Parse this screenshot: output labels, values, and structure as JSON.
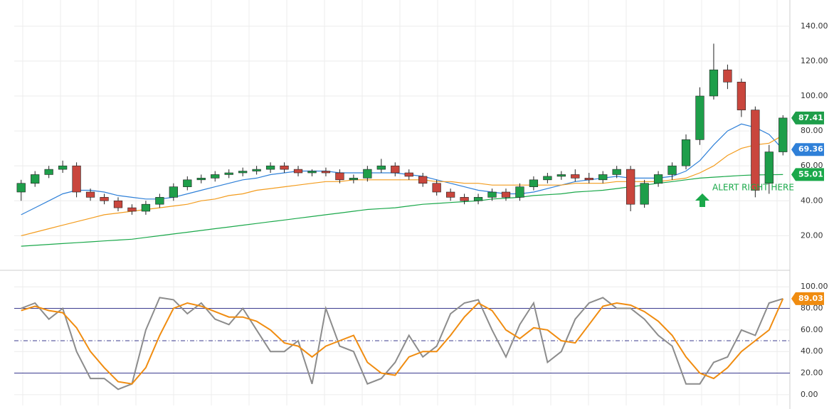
{
  "chart_data": [
    {
      "type": "candlestick",
      "open": [
        45,
        50,
        55,
        58,
        60,
        45,
        42,
        40,
        36,
        34,
        38,
        42,
        48,
        52,
        53,
        55,
        56,
        57,
        58,
        60,
        58,
        56,
        57,
        56,
        52,
        53,
        58,
        60,
        56,
        54,
        50,
        45,
        42,
        40,
        42,
        45,
        42,
        48,
        52,
        54,
        55,
        53,
        52,
        55,
        58,
        38,
        50,
        55,
        60,
        75,
        100,
        115,
        108,
        92,
        50,
        68
      ],
      "high": [
        52,
        57,
        60,
        63,
        62,
        47,
        44,
        42,
        38,
        40,
        44,
        50,
        54,
        55,
        57,
        58,
        59,
        60,
        62,
        62,
        60,
        58,
        59,
        58,
        55,
        60,
        64,
        62,
        58,
        56,
        52,
        47,
        44,
        44,
        47,
        47,
        50,
        54,
        56,
        57,
        58,
        56,
        57,
        60,
        60,
        52,
        57,
        62,
        78,
        105,
        130,
        118,
        110,
        94,
        72,
        89
      ],
      "low": [
        40,
        48,
        53,
        56,
        42,
        40,
        38,
        34,
        32,
        32,
        36,
        40,
        46,
        50,
        51,
        53,
        54,
        55,
        56,
        56,
        54,
        54,
        54,
        50,
        50,
        51,
        56,
        54,
        52,
        48,
        43,
        40,
        38,
        38,
        40,
        40,
        40,
        46,
        50,
        52,
        51,
        50,
        50,
        53,
        34,
        36,
        48,
        52,
        58,
        72,
        98,
        104,
        88,
        42,
        44,
        66
      ],
      "close": [
        50,
        55,
        58,
        60,
        45,
        42,
        40,
        36,
        34,
        38,
        42,
        48,
        52,
        53,
        55,
        56,
        57,
        58,
        60,
        58,
        56,
        57,
        56,
        52,
        53,
        58,
        60,
        56,
        54,
        50,
        45,
        42,
        40,
        42,
        45,
        42,
        48,
        52,
        54,
        55,
        53,
        52,
        55,
        58,
        38,
        50,
        55,
        60,
        75,
        100,
        115,
        108,
        92,
        46,
        68,
        87.41
      ],
      "up_color": "#1e9e4a",
      "down_color": "#c9463d",
      "lines": [
        {
          "color": "#2f80d8",
          "values": [
            32,
            36,
            40,
            44,
            46,
            46,
            45,
            43,
            42,
            41,
            41,
            42,
            44,
            46,
            48,
            50,
            52,
            53,
            55,
            56,
            57,
            57,
            57,
            56,
            56,
            56,
            56,
            56,
            55,
            54,
            52,
            50,
            48,
            46,
            45,
            44,
            44,
            45,
            47,
            49,
            51,
            52,
            53,
            54,
            53,
            53,
            53,
            54,
            57,
            63,
            72,
            80,
            84,
            82,
            78,
            69.36
          ]
        },
        {
          "color": "#f39c1e",
          "values": [
            20,
            22,
            24,
            26,
            28,
            30,
            32,
            33,
            34,
            35,
            36,
            37,
            38,
            40,
            41,
            43,
            44,
            46,
            47,
            48,
            49,
            50,
            51,
            51,
            52,
            52,
            52,
            52,
            52,
            52,
            51,
            51,
            50,
            50,
            49,
            49,
            49,
            49,
            49,
            49,
            50,
            50,
            50,
            51,
            51,
            51,
            51,
            52,
            53,
            56,
            60,
            66,
            70,
            72,
            73,
            77.5
          ]
        },
        {
          "color": "#1aa84a",
          "values": [
            14,
            14.5,
            15,
            15.5,
            16,
            16.5,
            17,
            17.5,
            18,
            19,
            20,
            21,
            22,
            23,
            24,
            25,
            26,
            27,
            28,
            29,
            30,
            31,
            32,
            33,
            34,
            35,
            35.5,
            36,
            37,
            38,
            38.5,
            39,
            39.5,
            40,
            41,
            41.5,
            42,
            43,
            43.5,
            44,
            45,
            45.5,
            46,
            47,
            48,
            49,
            50,
            51,
            52,
            53,
            53.5,
            54,
            54.5,
            54.8,
            54.9,
            55.01
          ]
        }
      ],
      "ylim": [
        1,
        155
      ],
      "yticks": [
        {
          "value": 20,
          "label": "20.00"
        },
        {
          "value": 40,
          "label": "40.00"
        },
        {
          "value": 60,
          "label": "60.00"
        },
        {
          "value": 80,
          "label": "80.00"
        },
        {
          "value": 100,
          "label": "100.00"
        },
        {
          "value": 120,
          "label": "120.00"
        },
        {
          "value": 140,
          "label": "140.00"
        }
      ],
      "grid": true,
      "annotation": "ALERT RIGHT HERE"
    },
    {
      "type": "line",
      "series": [
        {
          "color": "#8c8c8c",
          "values": [
            80,
            85,
            70,
            80,
            40,
            15,
            15,
            5,
            10,
            60,
            90,
            88,
            75,
            85,
            70,
            65,
            80,
            60,
            40,
            40,
            50,
            10,
            80,
            45,
            40,
            10,
            15,
            30,
            55,
            35,
            45,
            75,
            85,
            88,
            60,
            35,
            65,
            85,
            30,
            40,
            70,
            85,
            90,
            80,
            80,
            70,
            55,
            45,
            10,
            10,
            30,
            35,
            60,
            55,
            85,
            89
          ]
        },
        {
          "color": "#f08c10",
          "values": [
            78,
            82,
            78,
            76,
            62,
            40,
            25,
            12,
            10,
            25,
            55,
            80,
            85,
            82,
            77,
            72,
            72,
            68,
            60,
            48,
            45,
            35,
            45,
            50,
            55,
            30,
            20,
            18,
            35,
            40,
            40,
            55,
            72,
            85,
            78,
            60,
            52,
            62,
            60,
            50,
            48,
            65,
            82,
            85,
            83,
            77,
            68,
            55,
            35,
            20,
            15,
            25,
            40,
            50,
            60,
            89.03
          ]
        }
      ],
      "levels": [
        {
          "value": 80,
          "style": "solid"
        },
        {
          "value": 50,
          "style": "dashed"
        },
        {
          "value": 20,
          "style": "solid"
        }
      ],
      "level_color": "#3b3b8f",
      "ylim": [
        -10,
        114
      ],
      "yticks": [
        {
          "value": 0,
          "label": "0.00"
        },
        {
          "value": 20,
          "label": "20.00"
        },
        {
          "value": 40,
          "label": "40.00"
        },
        {
          "value": 60,
          "label": "60.00"
        },
        {
          "value": 80,
          "label": "80.00"
        },
        {
          "value": 100,
          "label": "100.00"
        }
      ],
      "grid": true
    }
  ]
}
